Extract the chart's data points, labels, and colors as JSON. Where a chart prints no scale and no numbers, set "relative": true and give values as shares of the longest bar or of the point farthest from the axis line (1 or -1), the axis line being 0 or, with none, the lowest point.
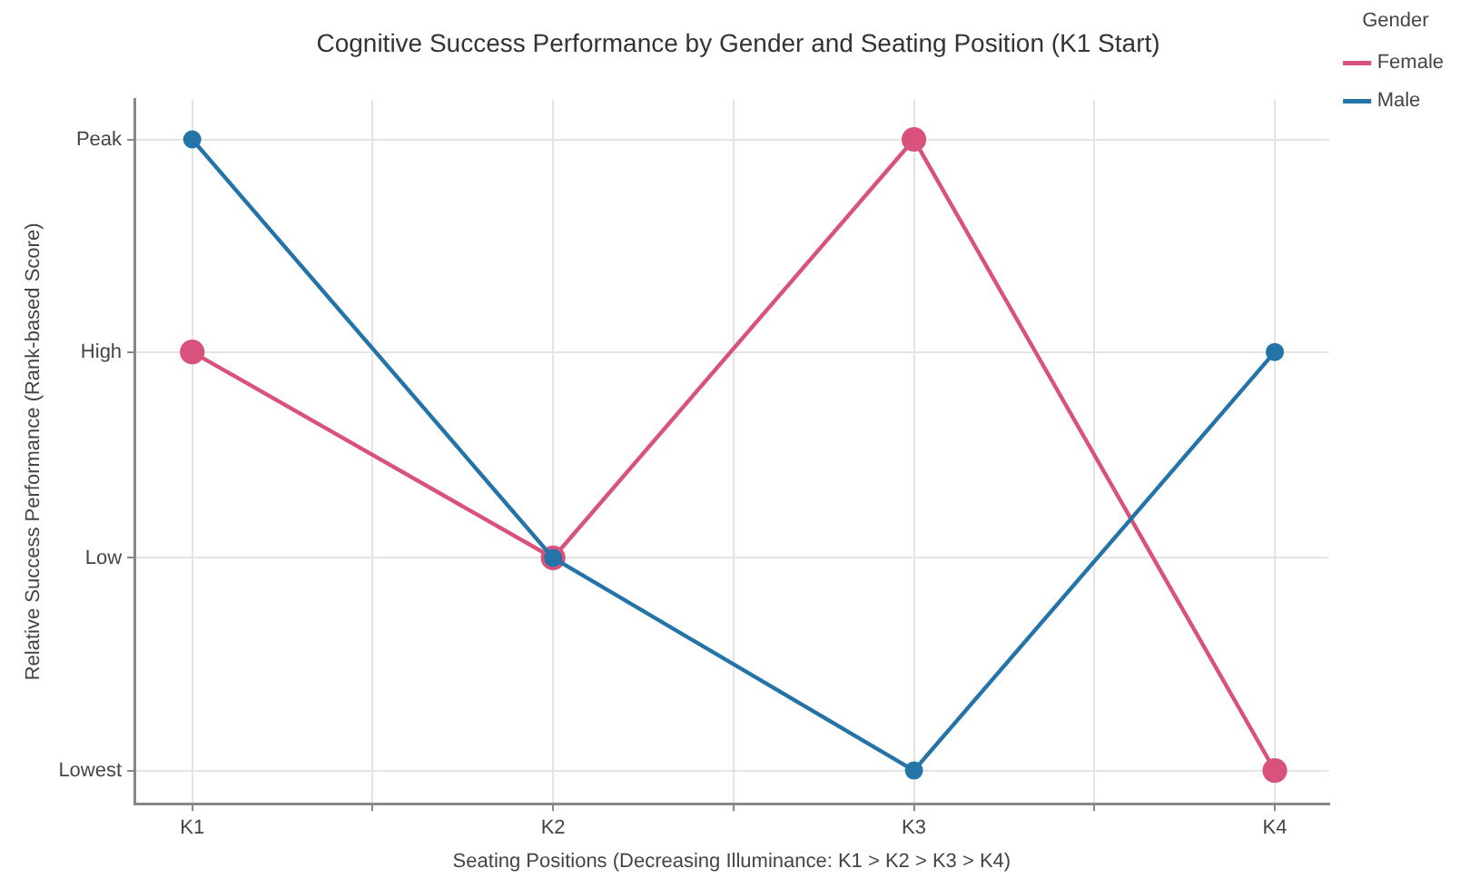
{
  "chart_data": {
    "type": "line",
    "title": "Cognitive Success Performance by Gender and Seating Position (K1 Start)",
    "xlabel": "Seating Positions (Decreasing Illuminance: K1 > K2 > K3 > K4)",
    "ylabel": "Relative Success Performance (Rank-based Score)",
    "legend_title": "Gender",
    "categories": [
      "K1",
      "K2",
      "K3",
      "K4"
    ],
    "relative": true,
    "series": [
      {
        "name": "Female",
        "color": "#d9527c",
        "values": [
          0.68,
          0.37,
          1,
          0.05
        ]
      },
      {
        "name": "Male",
        "color": "#2474a8",
        "values": [
          1,
          0.37,
          0.05,
          0.68
        ]
      }
    ],
    "annotations": [
      "Lowest",
      "Low",
      "High",
      "Peak"
    ],
    "grid": true,
    "legend": "top right",
    "marker": "circle",
    "line_style": "solid"
  }
}
